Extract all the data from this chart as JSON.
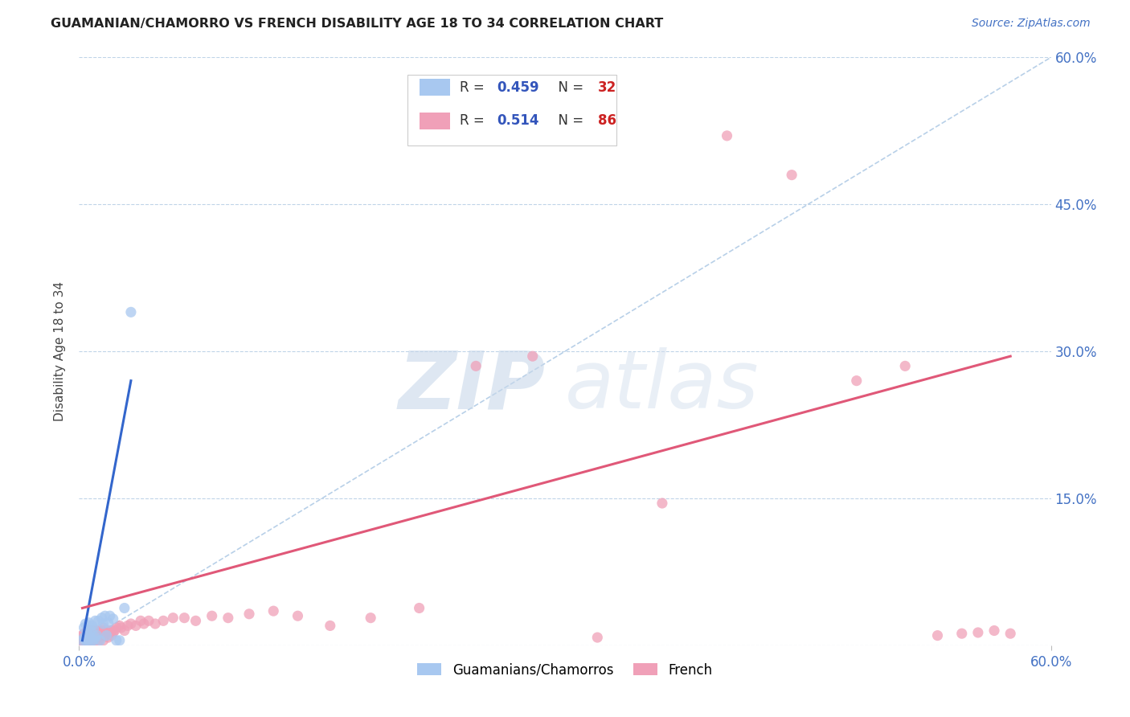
{
  "title": "GUAMANIAN/CHAMORRO VS FRENCH DISABILITY AGE 18 TO 34 CORRELATION CHART",
  "source": "Source: ZipAtlas.com",
  "ylabel": "Disability Age 18 to 34",
  "xlim": [
    0.0,
    0.6
  ],
  "ylim": [
    0.0,
    0.6
  ],
  "right_ytick_labels": [
    "15.0%",
    "30.0%",
    "45.0%",
    "60.0%"
  ],
  "right_ytick_vals": [
    0.15,
    0.3,
    0.45,
    0.6
  ],
  "scatter_color_guamanian": "#a8c8f0",
  "scatter_color_french": "#f0a0b8",
  "line_color_guamanian": "#3366cc",
  "line_color_french": "#e05878",
  "diagonal_color": "#b8d0e8",
  "background_color": "#ffffff",
  "guamanian_scatter_x": [
    0.002,
    0.003,
    0.003,
    0.004,
    0.004,
    0.005,
    0.005,
    0.006,
    0.006,
    0.006,
    0.007,
    0.007,
    0.008,
    0.008,
    0.009,
    0.009,
    0.01,
    0.01,
    0.011,
    0.012,
    0.013,
    0.014,
    0.015,
    0.016,
    0.017,
    0.018,
    0.019,
    0.021,
    0.023,
    0.025,
    0.028,
    0.032
  ],
  "guamanian_scatter_y": [
    0.005,
    0.008,
    0.018,
    0.005,
    0.022,
    0.005,
    0.012,
    0.005,
    0.01,
    0.023,
    0.008,
    0.015,
    0.005,
    0.02,
    0.005,
    0.017,
    0.008,
    0.025,
    0.01,
    0.025,
    0.005,
    0.028,
    0.022,
    0.03,
    0.01,
    0.023,
    0.03,
    0.027,
    0.005,
    0.005,
    0.038,
    0.34
  ],
  "french_scatter_x": [
    0.001,
    0.002,
    0.002,
    0.003,
    0.003,
    0.003,
    0.004,
    0.004,
    0.005,
    0.005,
    0.005,
    0.005,
    0.006,
    0.006,
    0.006,
    0.007,
    0.007,
    0.007,
    0.008,
    0.008,
    0.008,
    0.009,
    0.009,
    0.009,
    0.01,
    0.01,
    0.01,
    0.01,
    0.011,
    0.011,
    0.012,
    0.012,
    0.012,
    0.013,
    0.013,
    0.014,
    0.014,
    0.015,
    0.015,
    0.015,
    0.016,
    0.016,
    0.017,
    0.018,
    0.018,
    0.019,
    0.02,
    0.02,
    0.021,
    0.022,
    0.023,
    0.025,
    0.026,
    0.028,
    0.03,
    0.032,
    0.035,
    0.038,
    0.04,
    0.043,
    0.047,
    0.052,
    0.058,
    0.065,
    0.072,
    0.082,
    0.092,
    0.105,
    0.12,
    0.135,
    0.155,
    0.18,
    0.21,
    0.245,
    0.28,
    0.32,
    0.36,
    0.4,
    0.44,
    0.48,
    0.51,
    0.53,
    0.545,
    0.555,
    0.565,
    0.575
  ],
  "french_scatter_y": [
    0.005,
    0.005,
    0.01,
    0.005,
    0.008,
    0.012,
    0.005,
    0.01,
    0.005,
    0.008,
    0.012,
    0.015,
    0.005,
    0.01,
    0.012,
    0.005,
    0.01,
    0.015,
    0.005,
    0.008,
    0.013,
    0.005,
    0.01,
    0.015,
    0.005,
    0.008,
    0.01,
    0.015,
    0.008,
    0.013,
    0.005,
    0.01,
    0.015,
    0.008,
    0.013,
    0.01,
    0.015,
    0.005,
    0.012,
    0.018,
    0.01,
    0.015,
    0.013,
    0.008,
    0.015,
    0.013,
    0.01,
    0.015,
    0.013,
    0.015,
    0.018,
    0.02,
    0.018,
    0.015,
    0.02,
    0.022,
    0.02,
    0.025,
    0.022,
    0.025,
    0.022,
    0.025,
    0.028,
    0.028,
    0.025,
    0.03,
    0.028,
    0.032,
    0.035,
    0.03,
    0.02,
    0.028,
    0.038,
    0.285,
    0.295,
    0.008,
    0.145,
    0.52,
    0.48,
    0.27,
    0.285,
    0.01,
    0.012,
    0.013,
    0.015,
    0.012
  ],
  "guamanian_line_x": [
    0.002,
    0.032
  ],
  "guamanian_line_y": [
    0.005,
    0.27
  ],
  "french_line_x": [
    0.002,
    0.575
  ],
  "french_line_y": [
    0.038,
    0.295
  ],
  "diagonal_line_x": [
    0.0,
    0.6
  ],
  "diagonal_line_y": [
    0.0,
    0.6
  ]
}
